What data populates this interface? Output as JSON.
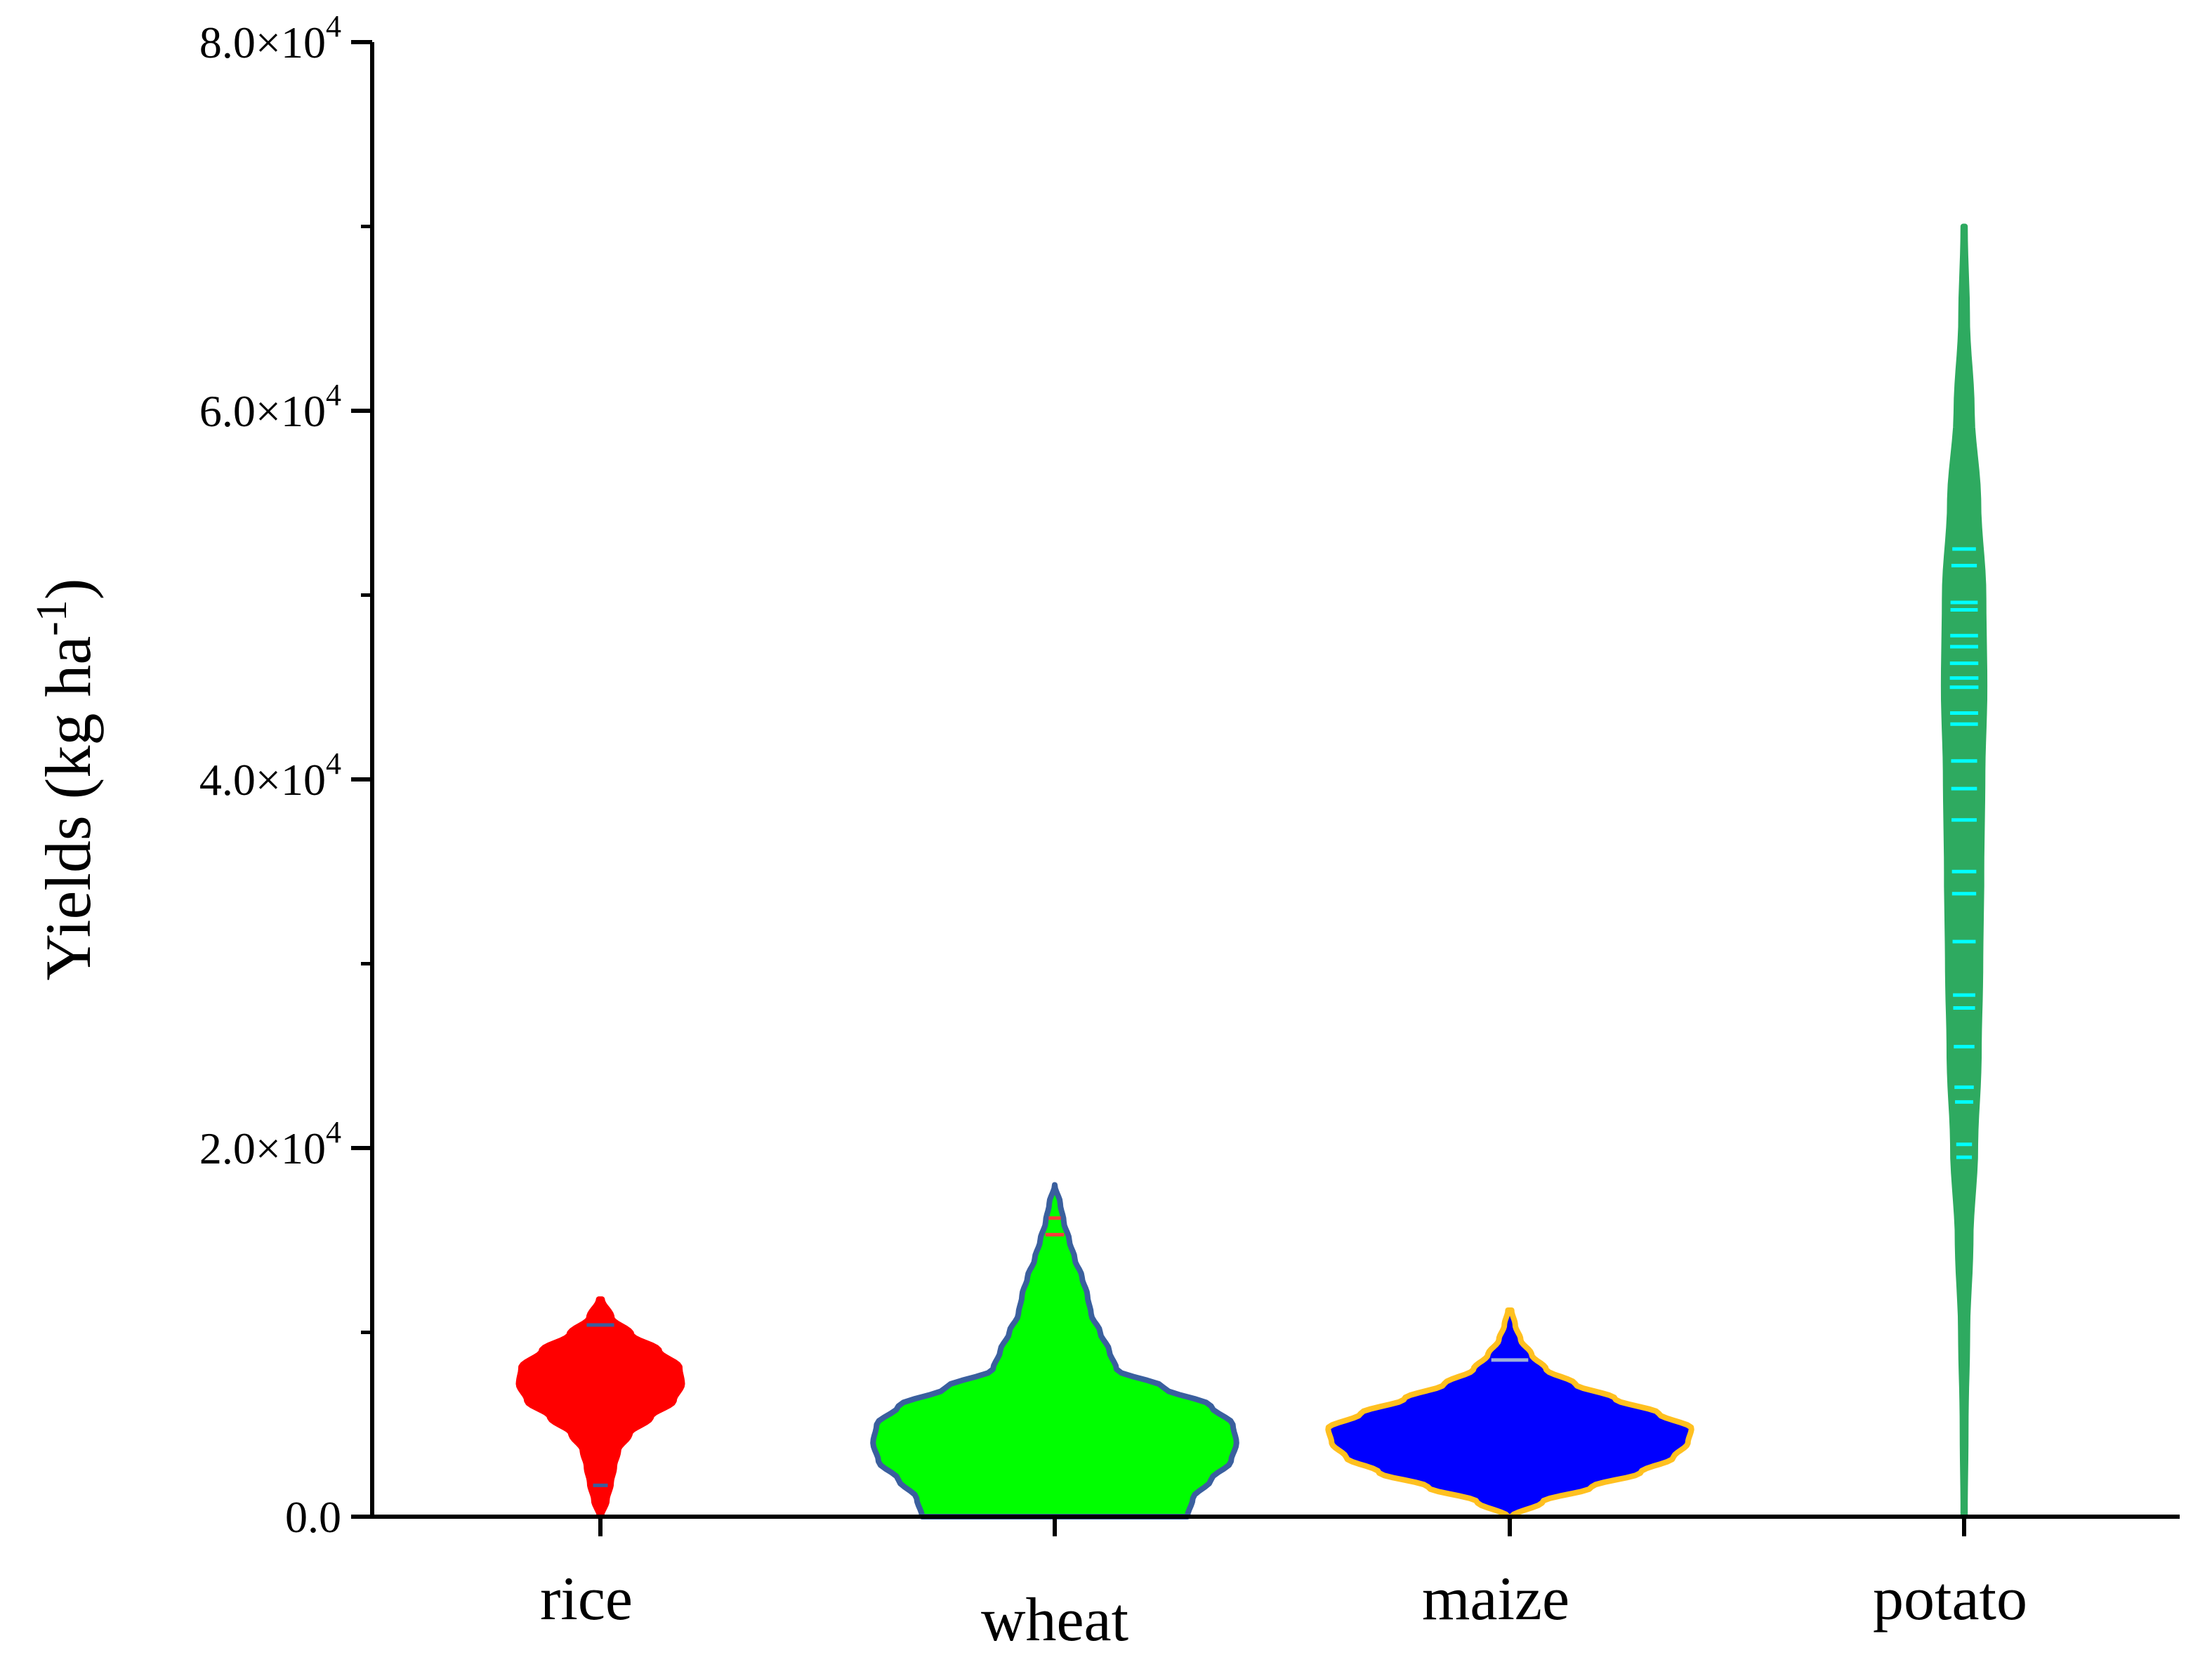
{
  "chart_data": {
    "type": "violin",
    "ylabel": {
      "text": "Yields (kg ha",
      "superscript": "-1",
      "close": ")"
    },
    "ylim": [
      0,
      80000
    ],
    "grid": false,
    "y_ticks": [
      {
        "value": 0,
        "label": "0.0",
        "exponent": ""
      },
      {
        "value": 20000,
        "label": "2.0×10",
        "exponent": "4"
      },
      {
        "value": 40000,
        "label": "4.0×10",
        "exponent": "4"
      },
      {
        "value": 60000,
        "label": "6.0×10",
        "exponent": "4"
      },
      {
        "value": 80000,
        "label": "8.0×10",
        "exponent": "4"
      }
    ],
    "y_minor_ticks": [
      10000,
      30000,
      50000,
      70000
    ],
    "categories": [
      "rice",
      "wheat",
      "maize",
      "potato"
    ],
    "series": [
      {
        "category": "rice",
        "fill": "#ff0000",
        "stroke": "#ff0000",
        "marker_color": "#3a5f9e",
        "range": [
          0,
          11800
        ],
        "density": [
          [
            0,
            0.01
          ],
          [
            900,
            0.08
          ],
          [
            1800,
            0.13
          ],
          [
            2700,
            0.17
          ],
          [
            3600,
            0.22
          ],
          [
            4500,
            0.36
          ],
          [
            5400,
            0.62
          ],
          [
            6300,
            0.9
          ],
          [
            7200,
            1.0
          ],
          [
            8100,
            0.97
          ],
          [
            9000,
            0.72
          ],
          [
            9900,
            0.38
          ],
          [
            10800,
            0.14
          ],
          [
            11800,
            0.02
          ]
        ],
        "half_width_max": 0.18,
        "points": [
          1700,
          10400
        ]
      },
      {
        "category": "wheat",
        "fill": "#00ff00",
        "stroke": "#3a5f9e",
        "marker_color": "#ff3b3b",
        "range": [
          0,
          18000
        ],
        "density": [
          [
            0,
            0.73
          ],
          [
            1000,
            0.76
          ],
          [
            2000,
            0.86
          ],
          [
            3000,
            0.97
          ],
          [
            4000,
            1.0
          ],
          [
            5000,
            0.98
          ],
          [
            6000,
            0.86
          ],
          [
            7000,
            0.6
          ],
          [
            8000,
            0.34
          ],
          [
            9000,
            0.3
          ],
          [
            10000,
            0.25
          ],
          [
            11000,
            0.2
          ],
          [
            12000,
            0.18
          ],
          [
            13000,
            0.15
          ],
          [
            14000,
            0.11
          ],
          [
            15000,
            0.08
          ],
          [
            16000,
            0.05
          ],
          [
            17000,
            0.03
          ],
          [
            18000,
            0.0
          ]
        ],
        "half_width_max": 0.4,
        "points": [
          15300,
          16200
        ]
      },
      {
        "category": "maize",
        "fill": "#0000ff",
        "stroke": "#ffc020",
        "marker_color": "#9fb0d8",
        "range": [
          0,
          11200
        ],
        "density": [
          [
            0,
            0.01
          ],
          [
            800,
            0.18
          ],
          [
            1600,
            0.45
          ],
          [
            2400,
            0.72
          ],
          [
            3200,
            0.9
          ],
          [
            4000,
            0.98
          ],
          [
            4800,
            1.0
          ],
          [
            5600,
            0.82
          ],
          [
            6400,
            0.58
          ],
          [
            7200,
            0.36
          ],
          [
            8000,
            0.2
          ],
          [
            8800,
            0.12
          ],
          [
            9600,
            0.06
          ],
          [
            10400,
            0.03
          ],
          [
            11200,
            0.01
          ]
        ],
        "half_width_max": 0.4,
        "points": [
          8500
        ]
      },
      {
        "category": "potato",
        "fill": "#2eaa60",
        "stroke": "#2eaa60",
        "marker_color": "#00ffff",
        "range": [
          0,
          70000
        ],
        "density": [
          [
            0,
            0.04
          ],
          [
            5000,
            0.08
          ],
          [
            10000,
            0.16
          ],
          [
            15000,
            0.32
          ],
          [
            20000,
            0.55
          ],
          [
            25000,
            0.72
          ],
          [
            30000,
            0.8
          ],
          [
            35000,
            0.85
          ],
          [
            40000,
            0.9
          ],
          [
            45000,
            1.0
          ],
          [
            50000,
            0.95
          ],
          [
            55000,
            0.7
          ],
          [
            60000,
            0.38
          ],
          [
            65000,
            0.15
          ],
          [
            70000,
            0.04
          ]
        ],
        "half_width_max": 0.045,
        "points": [
          19500,
          20200,
          22500,
          23300,
          25500,
          27600,
          28300,
          31200,
          33800,
          35000,
          37800,
          39500,
          41000,
          43000,
          43600,
          45000,
          45500,
          46300,
          47200,
          47800,
          49200,
          49600,
          51600,
          52500
        ]
      }
    ]
  }
}
